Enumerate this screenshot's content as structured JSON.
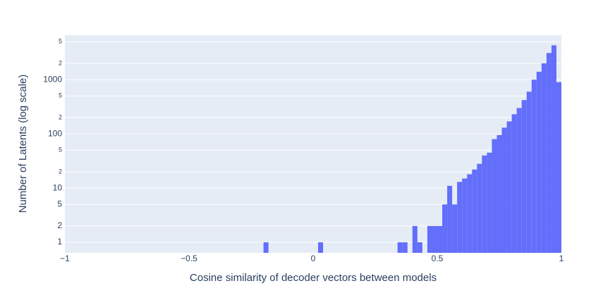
{
  "chart_data": {
    "type": "histogram",
    "x_label": "Cosine similarity of decoder vectors between models",
    "y_label": "Number of Latents (log scale)",
    "color": "#636efa",
    "log_y": true,
    "grid": true,
    "bins": [
      -1,
      -0.98,
      -0.96,
      -0.94,
      -0.92,
      -0.9,
      -0.88,
      -0.86,
      -0.84,
      -0.82,
      -0.8,
      -0.78,
      -0.76,
      -0.74,
      -0.72,
      -0.7,
      -0.68,
      -0.66,
      -0.64,
      -0.62,
      -0.6,
      -0.58,
      -0.56,
      -0.54,
      -0.52,
      -0.5,
      -0.48,
      -0.46,
      -0.44,
      -0.42,
      -0.4,
      -0.38,
      -0.36,
      -0.34,
      -0.32,
      -0.3,
      -0.28,
      -0.26,
      -0.24,
      -0.22,
      -0.2,
      -0.18,
      -0.16,
      -0.14,
      -0.12,
      -0.1,
      -0.08,
      -0.06,
      -0.04,
      -0.02,
      0,
      0.02,
      0.04,
      0.06,
      0.08,
      0.1,
      0.12,
      0.14,
      0.16,
      0.18,
      0.2,
      0.22,
      0.24,
      0.26,
      0.28,
      0.3,
      0.32,
      0.34,
      0.36,
      0.38,
      0.4,
      0.42,
      0.44,
      0.46,
      0.48,
      0.5,
      0.52,
      0.54,
      0.56,
      0.58,
      0.6,
      0.62,
      0.64,
      0.66,
      0.68,
      0.7,
      0.72,
      0.74,
      0.76,
      0.78,
      0.8,
      0.82,
      0.84,
      0.86,
      0.88,
      0.9,
      0.92,
      0.94,
      0.96,
      0.98,
      1
    ],
    "values": [
      0,
      0,
      0,
      0,
      0,
      0,
      0,
      0,
      0,
      0,
      0,
      0,
      0,
      0,
      0,
      0,
      0,
      0,
      0,
      0,
      0,
      0,
      0,
      0,
      0,
      0,
      0,
      0,
      0,
      0,
      0,
      0,
      0,
      0,
      0,
      0,
      0,
      0,
      0,
      0,
      1,
      0,
      0,
      0,
      0,
      0,
      0,
      0,
      0,
      0,
      0,
      1,
      0,
      0,
      0,
      0,
      0,
      0,
      0,
      0,
      0,
      0,
      0,
      0,
      0,
      0,
      0,
      1,
      1,
      0,
      2,
      1,
      0,
      2,
      2,
      2,
      5,
      11,
      5,
      13,
      15,
      18,
      22,
      28,
      40,
      45,
      80,
      95,
      130,
      170,
      230,
      300,
      420,
      600,
      1000,
      1400,
      2000,
      3100,
      4300,
      900
    ],
    "xlim": [
      -1,
      1
    ],
    "xticks": [
      {
        "value": -1,
        "label": "−1"
      },
      {
        "value": -0.5,
        "label": "−0.5"
      },
      0,
      0.5,
      1
    ],
    "ylim": [
      0.64,
      6600
    ],
    "yticks": [
      1,
      2,
      5,
      10,
      {
        "value": 20,
        "label": "2"
      },
      {
        "value": 50,
        "label": "5"
      },
      100,
      {
        "value": 200,
        "label": "2"
      },
      {
        "value": 500,
        "label": "5"
      },
      1000,
      {
        "value": 2000,
        "label": "2"
      },
      {
        "value": 5000,
        "label": "5"
      }
    ]
  }
}
